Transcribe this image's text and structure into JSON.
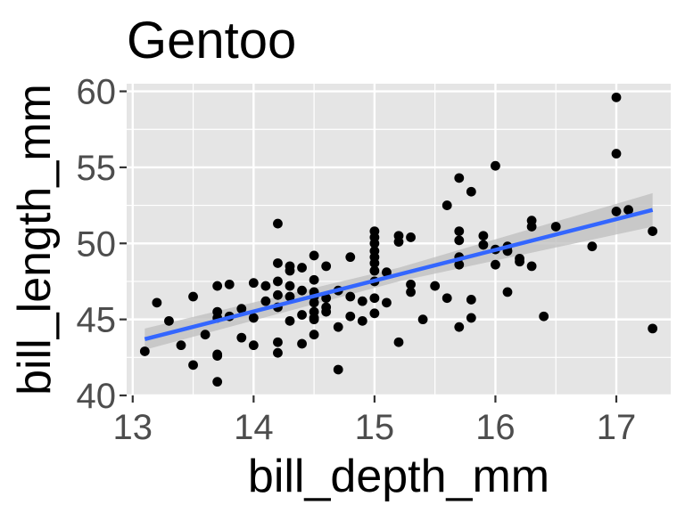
{
  "chart_data": {
    "type": "scatter",
    "title": "Gentoo",
    "xlabel": "bill_depth_mm",
    "ylabel": "bill_length_mm",
    "xlim": [
      12.95,
      17.45
    ],
    "ylim": [
      40,
      60.5
    ],
    "x_ticks": [
      13,
      14,
      15,
      16,
      17
    ],
    "y_ticks": [
      40,
      45,
      50,
      55,
      60
    ],
    "x_tick_labels": [
      "13",
      "14",
      "15",
      "16",
      "17"
    ],
    "y_tick_labels": [
      "40",
      "45",
      "50",
      "55",
      "60"
    ],
    "grid": true,
    "legend": "none",
    "colors": {
      "panel": "#e5e5e5",
      "grid": "#ffffff",
      "points": "#000000",
      "fit_line": "#3366ff",
      "confidence_band": "#bdbdbd",
      "text": "#000000",
      "tick_text": "#4d4d4d"
    },
    "fit": {
      "method": "lm",
      "x_range": [
        13.1,
        17.3
      ],
      "y_start": 43.7,
      "y_end": 52.2,
      "band_lower": [
        43.0,
        51.1
      ],
      "band_upper": [
        44.4,
        53.3
      ],
      "band_mid_halfwidth": 0.45
    },
    "series": [
      {
        "x": [
          13.1,
          13.2,
          13.3,
          13.4,
          13.5,
          13.5,
          13.6,
          13.7,
          13.7,
          13.7,
          13.7,
          13.7,
          13.7,
          13.8,
          13.8,
          13.9,
          13.9,
          14.0,
          14.0,
          14.0,
          14.1,
          14.1,
          14.2,
          14.2,
          14.2,
          14.2,
          14.2,
          14.2,
          14.2,
          14.3,
          14.3,
          14.3,
          14.3,
          14.3,
          14.4,
          14.4,
          14.4,
          14.4,
          14.5,
          14.5,
          14.5,
          14.5,
          14.5,
          14.5,
          14.5,
          14.5,
          14.5,
          14.6,
          14.6,
          14.6,
          14.6,
          14.7,
          14.7,
          14.7,
          14.8,
          14.8,
          14.8,
          14.9,
          14.9,
          15.0,
          15.0,
          15.0,
          15.0,
          15.0,
          15.0,
          15.0,
          15.0,
          15.0,
          15.0,
          15.1,
          15.1,
          15.2,
          15.2,
          15.2,
          15.3,
          15.3,
          15.3,
          15.4,
          15.5,
          15.6,
          15.6,
          15.7,
          15.7,
          15.7,
          15.7,
          15.7,
          15.7,
          15.8,
          15.8,
          15.8,
          15.9,
          15.9,
          16.0,
          16.0,
          16.0,
          16.1,
          16.1,
          16.1,
          16.2,
          16.2,
          16.3,
          16.3,
          16.3,
          16.4,
          16.5,
          16.8,
          17.0,
          17.0,
          17.0,
          17.1,
          17.3,
          17.3
        ],
        "y": [
          42.9,
          46.1,
          44.9,
          43.3,
          46.5,
          42.0,
          44.0,
          47.2,
          45.5,
          45.1,
          42.7,
          42.6,
          40.9,
          47.3,
          45.2,
          45.7,
          43.8,
          47.4,
          45.1,
          43.3,
          46.2,
          47.2,
          51.3,
          48.7,
          46.6,
          47.5,
          45.8,
          43.5,
          42.8,
          48.5,
          48.2,
          46.5,
          44.9,
          47.2,
          48.4,
          46.9,
          45.3,
          43.4,
          49.2,
          47.6,
          46.8,
          46.5,
          46.1,
          45.5,
          45.1,
          45.0,
          44.0,
          48.5,
          46.4,
          45.8,
          45.5,
          46.9,
          44.5,
          41.7,
          49.1,
          46.5,
          45.2,
          46.2,
          44.9,
          50.8,
          50.4,
          50.0,
          49.5,
          49.1,
          48.7,
          48.2,
          47.5,
          46.4,
          45.4,
          48.1,
          46.1,
          50.5,
          50.1,
          43.5,
          50.4,
          47.3,
          46.8,
          45.0,
          47.2,
          52.5,
          46.4,
          54.3,
          50.8,
          50.2,
          49.1,
          48.6,
          44.5,
          53.4,
          46.3,
          45.1,
          50.5,
          49.9,
          55.1,
          49.6,
          48.6,
          49.5,
          49.8,
          46.8,
          49.0,
          48.8,
          51.5,
          51.1,
          48.5,
          45.2,
          51.1,
          49.8,
          59.6,
          55.9,
          52.1,
          52.2,
          50.8,
          44.4
        ]
      }
    ]
  }
}
